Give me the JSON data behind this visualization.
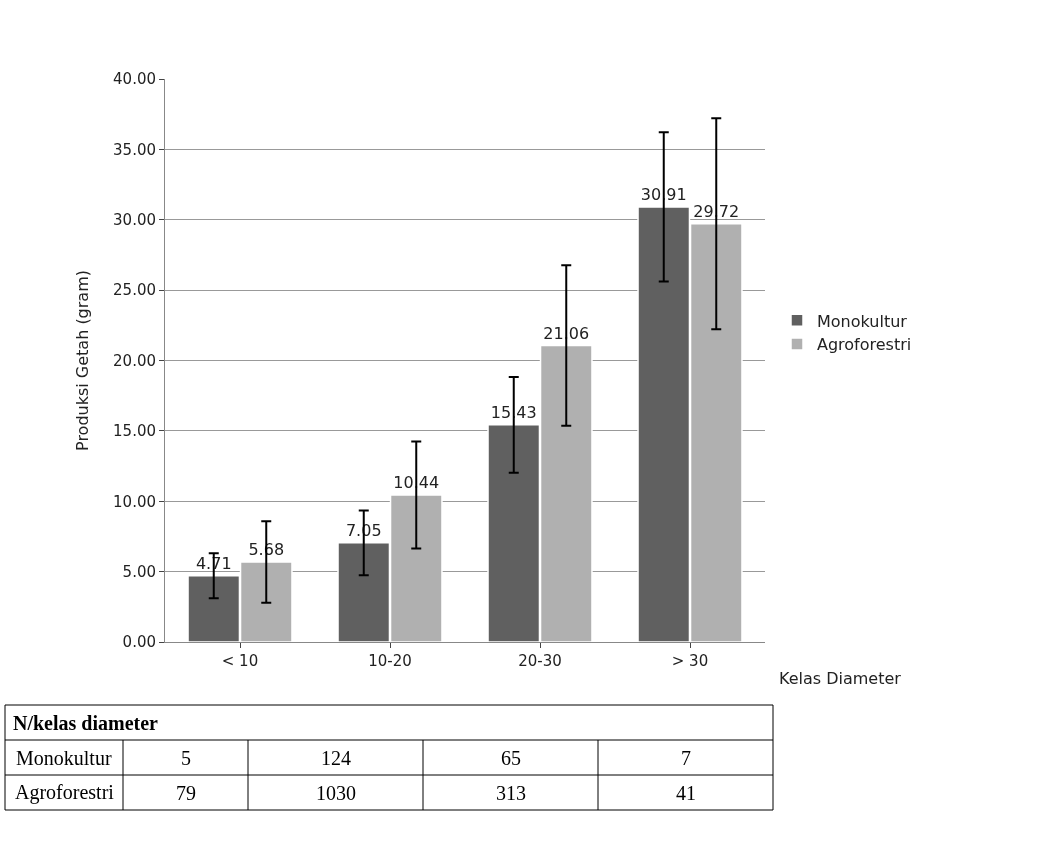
{
  "chart_data": {
    "type": "bar",
    "ylabel": "Produksi Getah (gram)",
    "xlabel": "Kelas Diameter",
    "categories": [
      "< 10",
      "10-20",
      "20-30",
      "> 30"
    ],
    "series": [
      {
        "name": "Monokultur",
        "color": "#606060",
        "values": [
          4.71,
          7.05,
          15.43,
          30.91
        ],
        "errors": [
          1.6,
          2.3,
          3.4,
          5.3
        ]
      },
      {
        "name": "Agroforestri",
        "color": "#b0b0b0",
        "values": [
          5.68,
          10.44,
          21.06,
          29.72
        ],
        "errors": [
          2.9,
          3.8,
          5.7,
          7.5
        ]
      }
    ],
    "ylim": [
      0,
      40
    ],
    "yticks": [
      {
        "value": 0,
        "label": "0.00"
      },
      {
        "value": 5,
        "label": "5.00"
      },
      {
        "value": 10,
        "label": "10.00"
      },
      {
        "value": 15,
        "label": "15.00"
      },
      {
        "value": 20,
        "label": "20.00"
      },
      {
        "value": 25,
        "label": "25.00"
      },
      {
        "value": 30,
        "label": "30.00"
      },
      {
        "value": 35,
        "label": "35.00"
      },
      {
        "value": 40,
        "label": "40.00"
      }
    ],
    "grid": "y",
    "legend": "right",
    "data_labels": true,
    "annotations": [
      "N/kelas diameter",
      "Monokultur",
      "5",
      "124",
      "65",
      "7",
      "Agroforestri",
      "79",
      "1030",
      "313",
      "41"
    ]
  }
}
